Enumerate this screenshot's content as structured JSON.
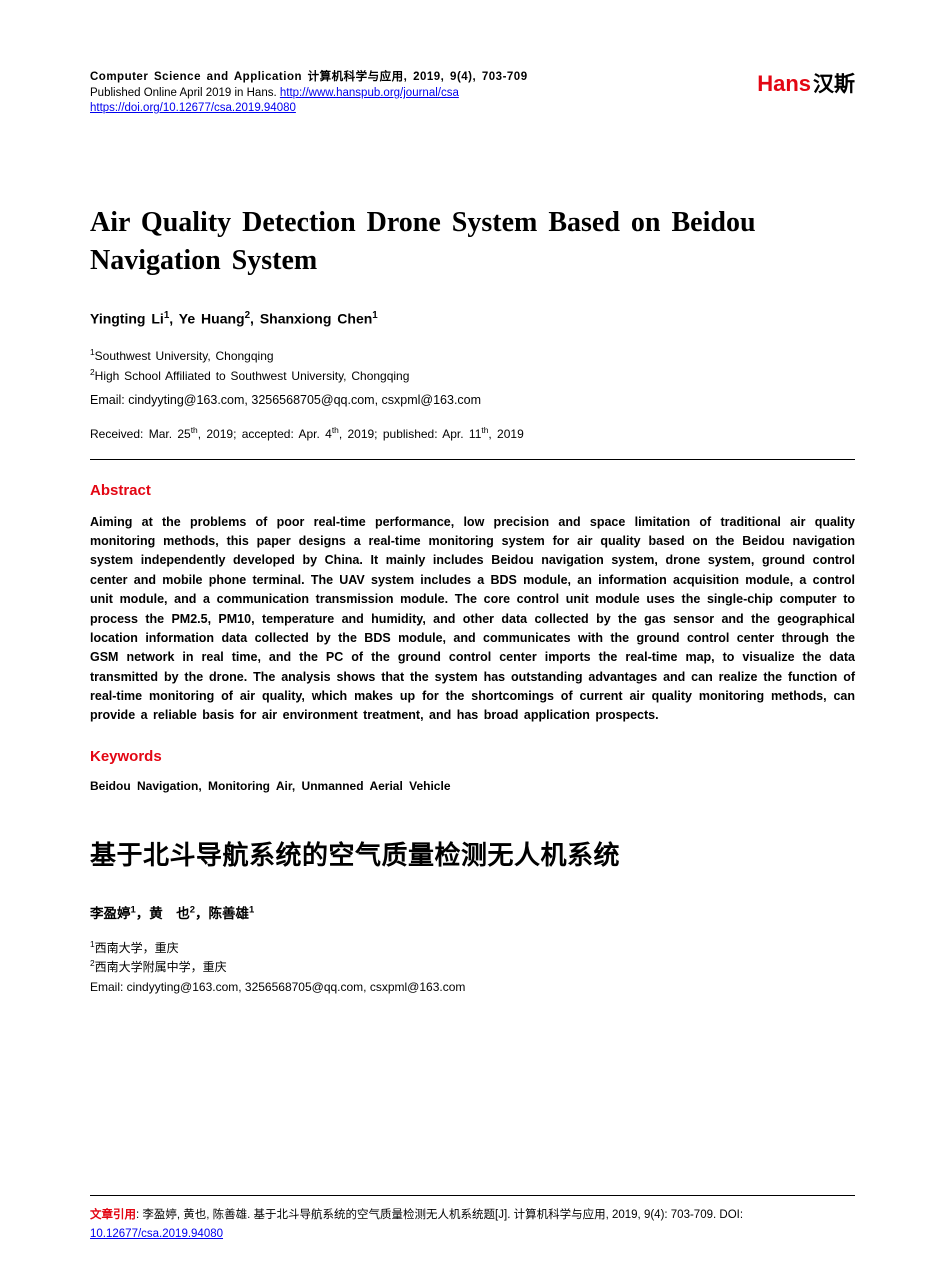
{
  "header": {
    "journal_info": "Computer Science and Application  计算机科学与应用, 2019, 9(4), 703-709",
    "published_line_prefix": "Published Online April 2019 in Hans. ",
    "url1": "http://www.hanspub.org/journal/csa",
    "url2": "https://doi.org/10.12677/csa.2019.94080"
  },
  "logo": {
    "brand_en": "Hans",
    "brand_cn": "汉斯"
  },
  "title_en": "Air Quality Detection Drone System Based on Beidou Navigation System",
  "authors_en": [
    {
      "name": "Yingting Li",
      "sup": "1"
    },
    {
      "name": "Ye Huang",
      "sup": "2"
    },
    {
      "name": "Shanxiong Chen",
      "sup": "1"
    }
  ],
  "affiliations_en": [
    {
      "sup": "1",
      "text": "Southwest University, Chongqing"
    },
    {
      "sup": "2",
      "text": "High School Affiliated to Southwest University, Chongqing"
    }
  ],
  "email_line": "Email: cindyyting@163.com, 3256568705@qq.com, csxpml@163.com",
  "dates": {
    "received_label": "Received: Mar. 25",
    "received_sup": "th",
    "received_year": ", 2019; ",
    "accepted_label": "accepted: Apr. 4",
    "accepted_sup": "th",
    "accepted_year": ", 2019; ",
    "published_label": "published: Apr. 11",
    "published_sup": "th",
    "published_year": ", 2019"
  },
  "abstract": {
    "heading": "Abstract",
    "text": "Aiming at the problems of poor real-time performance, low precision and space limitation of traditional air quality monitoring methods, this paper designs a real-time monitoring system for air quality based on the Beidou navigation system independently developed by China. It mainly includes Beidou navigation system, drone system, ground control center and mobile phone terminal. The UAV system includes a BDS module, an information acquisition module, a control unit module, and a communication transmission module. The core control unit module uses the single-chip computer to process the PM2.5, PM10, temperature and humidity, and other data collected by the gas sensor and the geographical location information data collected by the BDS module, and communicates with the ground control center through the GSM network in real time, and the PC of the ground control center imports the real-time map, to visualize the data transmitted by the drone. The analysis shows that the system has outstanding advantages and can realize the function of real-time monitoring of air quality, which makes up for the shortcomings of current air quality monitoring methods, can provide a reliable basis for air environment treatment, and has broad application prospects."
  },
  "keywords": {
    "heading": "Keywords",
    "text": "Beidou Navigation, Monitoring Air, Unmanned Aerial Vehicle"
  },
  "title_cn": "基于北斗导航系统的空气质量检测无人机系统",
  "authors_cn": [
    {
      "name": "李盈婷",
      "sup": "1"
    },
    {
      "name": "黄　也",
      "sup": "2"
    },
    {
      "name": "陈善雄",
      "sup": "1"
    }
  ],
  "affiliations_cn": [
    {
      "sup": "1",
      "text": "西南大学，重庆"
    },
    {
      "sup": "2",
      "text": "西南大学附属中学，重庆"
    }
  ],
  "email_cn": "Email: cindyyting@163.com, 3256568705@qq.com, csxpml@163.com",
  "footer": {
    "cite_label": "文章引用",
    "cite_text": ": 李盈婷, 黄也, 陈善雄. 基于北斗导航系统的空气质量检测无人机系统题[J]. 计算机科学与应用, 2019, 9(4): 703-709. ",
    "doi_label": "DOI: ",
    "doi_link": "10.12677/csa.2019.94080"
  },
  "colors": {
    "accent_red": "#e30613",
    "link_blue": "#0000ee",
    "text": "#000000",
    "background": "#ffffff"
  }
}
